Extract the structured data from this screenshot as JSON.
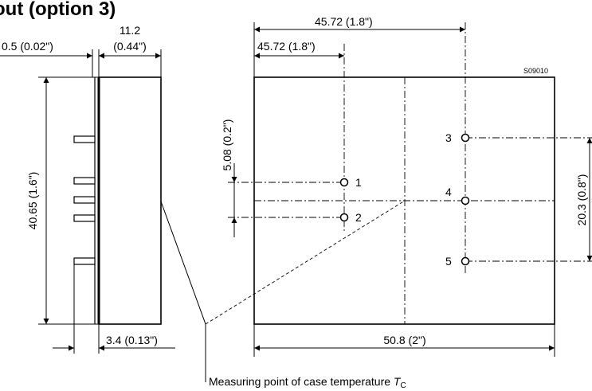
{
  "title": "out (option 3)",
  "side_view": {
    "gap_label": "0.5 (0.02\")",
    "depth_label_line1": "11.2",
    "depth_label_line2": "(0.44\")",
    "height_label": "40.65 (1.6\")",
    "pin_offset_label": "3.4 (0.13\")"
  },
  "top_view": {
    "drawing_code": "S09010",
    "outer_offset_label": "45.72 (1.8\")",
    "inner_offset_label": "45.72 (1.8\")",
    "pin_spacing_left_label": "5.08 (0.2\")",
    "pin_spacing_right_label": "20.3 (0.8\")",
    "width_label": "50.8 (2\")",
    "pins": [
      "1",
      "2",
      "3",
      "4",
      "5"
    ]
  },
  "caption": {
    "text": "Measuring point of case temperature ",
    "symbol": "T",
    "subscript": "C"
  }
}
